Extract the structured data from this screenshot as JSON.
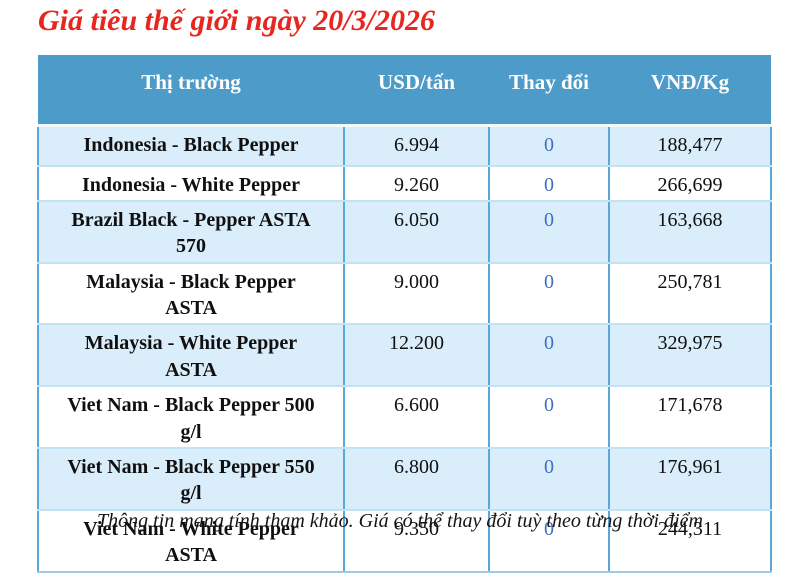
{
  "title": "Giá tiêu thế giới ngày 20/3/2026",
  "colors": {
    "title_red": "#e7261f",
    "header_blue": "#4d9bc9",
    "row_alt_blue": "#d9edfa",
    "grid_vertical_blue": "#5ba7d9",
    "grid_horizontal_blue": "#c2e2f5",
    "change_value_blue": "#3f6fc4"
  },
  "table": {
    "headers": [
      "Thị trường",
      "USD/tấn",
      "Thay đổi",
      "VNĐ/Kg"
    ],
    "rows": [
      {
        "market": "Indonesia - Black Pepper",
        "usd": "6.994",
        "change": "0",
        "vnd": "188,477"
      },
      {
        "market": "Indonesia - White Pepper",
        "usd": "9.260",
        "change": "0",
        "vnd": "266,699"
      },
      {
        "market": "Brazil Black - Pepper ASTA\n570",
        "usd": "6.050",
        "change": "0",
        "vnd": "163,668"
      },
      {
        "market": "Malaysia - Black Pepper\nASTA",
        "usd": "9.000",
        "change": "0",
        "vnd": "250,781"
      },
      {
        "market": "Malaysia - White Pepper\nASTA",
        "usd": "12.200",
        "change": "0",
        "vnd": "329,975"
      },
      {
        "market": "Viet Nam - Black Pepper 500\ng/l",
        "usd": "6.600",
        "change": "0",
        "vnd": "171,678"
      },
      {
        "market": "Viet Nam - Black Pepper 550\ng/l",
        "usd": "6.800",
        "change": "0",
        "vnd": "176,961"
      },
      {
        "market": "Viet Nam - White Pepper\nASTA",
        "usd": "9.350",
        "change": "0",
        "vnd": "244,311"
      }
    ]
  },
  "footer_note": "Thông tin mang tính tham khảo. Giá có thể thay đổi tuỳ theo từng thời điểm"
}
